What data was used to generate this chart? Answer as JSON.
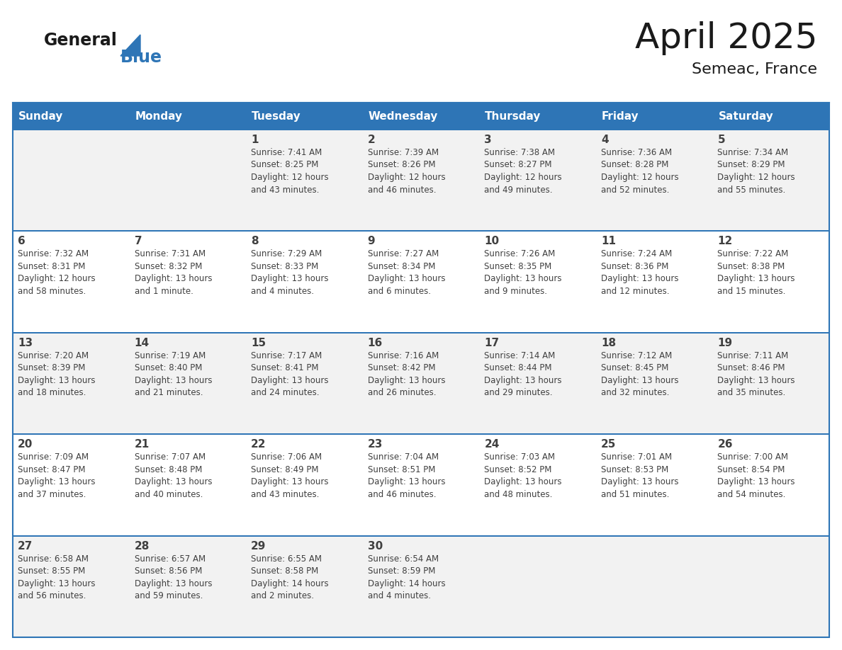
{
  "title": "April 2025",
  "subtitle": "Semeac, France",
  "header_bg": "#2E75B6",
  "header_text_color": "#FFFFFF",
  "cell_bg_light": "#F2F2F2",
  "cell_bg_white": "#FFFFFF",
  "border_color": "#2E75B6",
  "text_color": "#404040",
  "days_of_week": [
    "Sunday",
    "Monday",
    "Tuesday",
    "Wednesday",
    "Thursday",
    "Friday",
    "Saturday"
  ],
  "calendar": [
    [
      {
        "day": "",
        "sunrise": "",
        "sunset": "",
        "daylight": ""
      },
      {
        "day": "",
        "sunrise": "",
        "sunset": "",
        "daylight": ""
      },
      {
        "day": "1",
        "sunrise": "Sunrise: 7:41 AM",
        "sunset": "Sunset: 8:25 PM",
        "daylight": "Daylight: 12 hours\nand 43 minutes."
      },
      {
        "day": "2",
        "sunrise": "Sunrise: 7:39 AM",
        "sunset": "Sunset: 8:26 PM",
        "daylight": "Daylight: 12 hours\nand 46 minutes."
      },
      {
        "day": "3",
        "sunrise": "Sunrise: 7:38 AM",
        "sunset": "Sunset: 8:27 PM",
        "daylight": "Daylight: 12 hours\nand 49 minutes."
      },
      {
        "day": "4",
        "sunrise": "Sunrise: 7:36 AM",
        "sunset": "Sunset: 8:28 PM",
        "daylight": "Daylight: 12 hours\nand 52 minutes."
      },
      {
        "day": "5",
        "sunrise": "Sunrise: 7:34 AM",
        "sunset": "Sunset: 8:29 PM",
        "daylight": "Daylight: 12 hours\nand 55 minutes."
      }
    ],
    [
      {
        "day": "6",
        "sunrise": "Sunrise: 7:32 AM",
        "sunset": "Sunset: 8:31 PM",
        "daylight": "Daylight: 12 hours\nand 58 minutes."
      },
      {
        "day": "7",
        "sunrise": "Sunrise: 7:31 AM",
        "sunset": "Sunset: 8:32 PM",
        "daylight": "Daylight: 13 hours\nand 1 minute."
      },
      {
        "day": "8",
        "sunrise": "Sunrise: 7:29 AM",
        "sunset": "Sunset: 8:33 PM",
        "daylight": "Daylight: 13 hours\nand 4 minutes."
      },
      {
        "day": "9",
        "sunrise": "Sunrise: 7:27 AM",
        "sunset": "Sunset: 8:34 PM",
        "daylight": "Daylight: 13 hours\nand 6 minutes."
      },
      {
        "day": "10",
        "sunrise": "Sunrise: 7:26 AM",
        "sunset": "Sunset: 8:35 PM",
        "daylight": "Daylight: 13 hours\nand 9 minutes."
      },
      {
        "day": "11",
        "sunrise": "Sunrise: 7:24 AM",
        "sunset": "Sunset: 8:36 PM",
        "daylight": "Daylight: 13 hours\nand 12 minutes."
      },
      {
        "day": "12",
        "sunrise": "Sunrise: 7:22 AM",
        "sunset": "Sunset: 8:38 PM",
        "daylight": "Daylight: 13 hours\nand 15 minutes."
      }
    ],
    [
      {
        "day": "13",
        "sunrise": "Sunrise: 7:20 AM",
        "sunset": "Sunset: 8:39 PM",
        "daylight": "Daylight: 13 hours\nand 18 minutes."
      },
      {
        "day": "14",
        "sunrise": "Sunrise: 7:19 AM",
        "sunset": "Sunset: 8:40 PM",
        "daylight": "Daylight: 13 hours\nand 21 minutes."
      },
      {
        "day": "15",
        "sunrise": "Sunrise: 7:17 AM",
        "sunset": "Sunset: 8:41 PM",
        "daylight": "Daylight: 13 hours\nand 24 minutes."
      },
      {
        "day": "16",
        "sunrise": "Sunrise: 7:16 AM",
        "sunset": "Sunset: 8:42 PM",
        "daylight": "Daylight: 13 hours\nand 26 minutes."
      },
      {
        "day": "17",
        "sunrise": "Sunrise: 7:14 AM",
        "sunset": "Sunset: 8:44 PM",
        "daylight": "Daylight: 13 hours\nand 29 minutes."
      },
      {
        "day": "18",
        "sunrise": "Sunrise: 7:12 AM",
        "sunset": "Sunset: 8:45 PM",
        "daylight": "Daylight: 13 hours\nand 32 minutes."
      },
      {
        "day": "19",
        "sunrise": "Sunrise: 7:11 AM",
        "sunset": "Sunset: 8:46 PM",
        "daylight": "Daylight: 13 hours\nand 35 minutes."
      }
    ],
    [
      {
        "day": "20",
        "sunrise": "Sunrise: 7:09 AM",
        "sunset": "Sunset: 8:47 PM",
        "daylight": "Daylight: 13 hours\nand 37 minutes."
      },
      {
        "day": "21",
        "sunrise": "Sunrise: 7:07 AM",
        "sunset": "Sunset: 8:48 PM",
        "daylight": "Daylight: 13 hours\nand 40 minutes."
      },
      {
        "day": "22",
        "sunrise": "Sunrise: 7:06 AM",
        "sunset": "Sunset: 8:49 PM",
        "daylight": "Daylight: 13 hours\nand 43 minutes."
      },
      {
        "day": "23",
        "sunrise": "Sunrise: 7:04 AM",
        "sunset": "Sunset: 8:51 PM",
        "daylight": "Daylight: 13 hours\nand 46 minutes."
      },
      {
        "day": "24",
        "sunrise": "Sunrise: 7:03 AM",
        "sunset": "Sunset: 8:52 PM",
        "daylight": "Daylight: 13 hours\nand 48 minutes."
      },
      {
        "day": "25",
        "sunrise": "Sunrise: 7:01 AM",
        "sunset": "Sunset: 8:53 PM",
        "daylight": "Daylight: 13 hours\nand 51 minutes."
      },
      {
        "day": "26",
        "sunrise": "Sunrise: 7:00 AM",
        "sunset": "Sunset: 8:54 PM",
        "daylight": "Daylight: 13 hours\nand 54 minutes."
      }
    ],
    [
      {
        "day": "27",
        "sunrise": "Sunrise: 6:58 AM",
        "sunset": "Sunset: 8:55 PM",
        "daylight": "Daylight: 13 hours\nand 56 minutes."
      },
      {
        "day": "28",
        "sunrise": "Sunrise: 6:57 AM",
        "sunset": "Sunset: 8:56 PM",
        "daylight": "Daylight: 13 hours\nand 59 minutes."
      },
      {
        "day": "29",
        "sunrise": "Sunrise: 6:55 AM",
        "sunset": "Sunset: 8:58 PM",
        "daylight": "Daylight: 14 hours\nand 2 minutes."
      },
      {
        "day": "30",
        "sunrise": "Sunrise: 6:54 AM",
        "sunset": "Sunset: 8:59 PM",
        "daylight": "Daylight: 14 hours\nand 4 minutes."
      },
      {
        "day": "",
        "sunrise": "",
        "sunset": "",
        "daylight": ""
      },
      {
        "day": "",
        "sunrise": "",
        "sunset": "",
        "daylight": ""
      },
      {
        "day": "",
        "sunrise": "",
        "sunset": "",
        "daylight": ""
      }
    ]
  ]
}
